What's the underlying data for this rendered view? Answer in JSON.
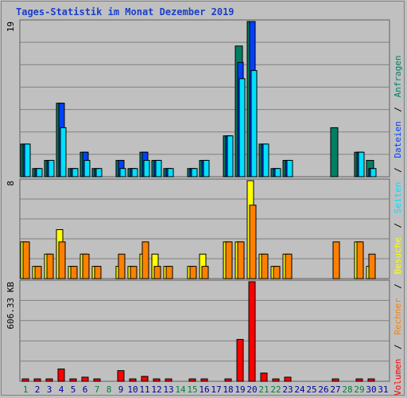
{
  "title": "Tages-Statistik im Monat Dezember 2019",
  "colors": {
    "anfragen": "#008060",
    "dateien": "#0040ff",
    "seiten": "#00e0ff",
    "besuche": "#ffff00",
    "rechner": "#ff8000",
    "volumen": "#ff0000",
    "weekday_label": "#0000a0",
    "weekend_label": "#008040",
    "grid": "#808080"
  },
  "legend": {
    "anfragen": "Anfragen",
    "dateien": "Dateien",
    "seiten": "Seiten",
    "besuche": "Besuche",
    "rechner": "Rechner",
    "volumen": "Volumen",
    "sep": "/"
  },
  "chart_data": {
    "type": "bar",
    "title": "Tages-Statistik im Monat Dezember 2019",
    "x": [
      1,
      2,
      3,
      4,
      5,
      6,
      7,
      8,
      9,
      10,
      11,
      12,
      13,
      14,
      15,
      16,
      17,
      18,
      19,
      20,
      21,
      22,
      23,
      24,
      25,
      26,
      27,
      28,
      29,
      30,
      31
    ],
    "weekend_days": [
      1,
      7,
      8,
      14,
      15,
      21,
      22,
      28,
      29
    ],
    "panels": [
      {
        "name": "requests",
        "max_label": "19",
        "ylim": [
          0,
          19
        ],
        "series": [
          {
            "name": "Anfragen",
            "values": [
              4,
              1,
              2,
              9,
              1,
              3,
              1,
              0,
              2,
              1,
              3,
              2,
              1,
              0,
              1,
              2,
              0,
              5,
              16,
              19,
              4,
              1,
              2,
              0,
              0,
              0,
              6,
              0,
              3,
              2,
              0
            ]
          },
          {
            "name": "Dateien",
            "values": [
              4,
              1,
              2,
              9,
              1,
              3,
              1,
              0,
              2,
              1,
              3,
              2,
              1,
              0,
              1,
              2,
              0,
              5,
              14,
              19,
              4,
              1,
              2,
              0,
              0,
              0,
              0,
              0,
              3,
              1,
              0
            ]
          },
          {
            "name": "Seiten",
            "values": [
              4,
              1,
              2,
              6,
              1,
              2,
              1,
              0,
              1,
              1,
              2,
              2,
              1,
              0,
              1,
              2,
              0,
              5,
              12,
              13,
              4,
              1,
              2,
              0,
              0,
              0,
              0,
              0,
              3,
              1,
              0
            ]
          }
        ]
      },
      {
        "name": "visits",
        "max_label": "8",
        "ylim": [
          0,
          8
        ],
        "series": [
          {
            "name": "Besuche",
            "values": [
              3,
              1,
              2,
              4,
              1,
              2,
              1,
              0,
              1,
              1,
              2,
              2,
              1,
              0,
              1,
              2,
              0,
              3,
              3,
              8,
              2,
              1,
              2,
              0,
              0,
              0,
              0,
              0,
              3,
              1,
              0
            ]
          },
          {
            "name": "Rechner",
            "values": [
              3,
              1,
              2,
              3,
              1,
              2,
              1,
              0,
              2,
              1,
              3,
              1,
              1,
              0,
              1,
              1,
              0,
              3,
              3,
              6,
              2,
              1,
              2,
              0,
              0,
              0,
              3,
              0,
              3,
              2,
              0
            ]
          }
        ]
      },
      {
        "name": "volume",
        "max_label": "606.33 KB",
        "ylim": [
          0,
          606.33
        ],
        "series": [
          {
            "name": "Volumen",
            "values": [
              5,
              5,
              5,
              75,
              5,
              25,
              5,
              0,
              65,
              5,
              30,
              5,
              5,
              0,
              5,
              5,
              0,
              5,
              255,
              606.33,
              50,
              5,
              25,
              0,
              0,
              0,
              5,
              0,
              5,
              5,
              0
            ]
          }
        ]
      }
    ]
  }
}
